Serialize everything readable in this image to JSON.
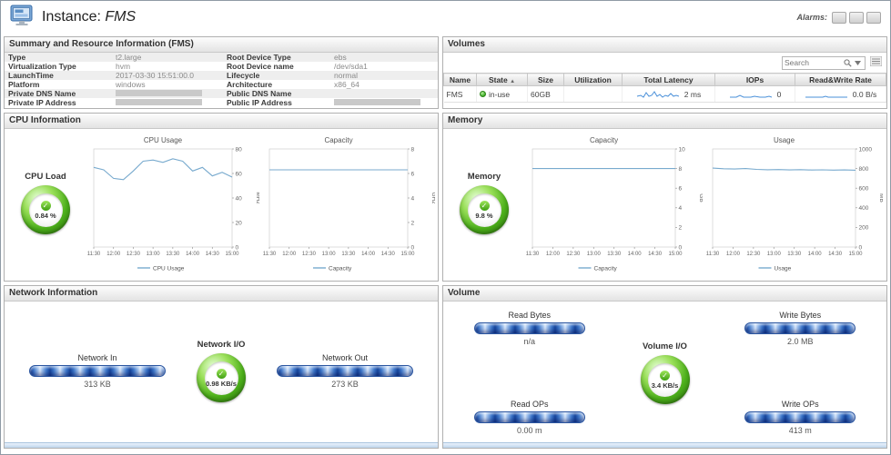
{
  "header": {
    "title_prefix": "Instance:",
    "instance_name": "FMS",
    "alarms_label": "Alarms:"
  },
  "icons": {
    "check": "✓",
    "sort_asc": "▲"
  },
  "summary": {
    "title": "Summary and Resource Information (FMS)",
    "rows": [
      {
        "k1": "Type",
        "v1": "t2.large",
        "k2": "Root Device Type",
        "v2": "ebs"
      },
      {
        "k1": "Virtualization Type",
        "v1": "hvm",
        "k2": "Root Device name",
        "v2": "/dev/sda1"
      },
      {
        "k1": "LaunchTime",
        "v1": "2017-03-30 15:51:00.0",
        "k2": "Lifecycle",
        "v2": "normal"
      },
      {
        "k1": "Platform",
        "v1": "windows",
        "k2": "Architecture",
        "v2": "x86_64"
      },
      {
        "k1": "Private DNS Name",
        "v1": "",
        "k2": "Public DNS Name",
        "v2": ""
      },
      {
        "k1": "Private IP Address",
        "v1": "",
        "k2": "Public IP Address",
        "v2": ""
      }
    ]
  },
  "volumes": {
    "title": "Volumes",
    "search_placeholder": "Search",
    "columns": [
      "Name",
      "State",
      "Size",
      "Utilization",
      "Total Latency",
      "IOPs",
      "Read&Write Rate"
    ],
    "row": {
      "name": "FMS",
      "state": "in-use",
      "size": "60GB",
      "utilization": "",
      "total_latency": "2 ms",
      "iops": "0",
      "read_write_rate": "0.0 B/s"
    }
  },
  "cpu": {
    "title": "CPU Information",
    "gauge_label": "CPU Load",
    "gauge_value": "0.84 %"
  },
  "memory": {
    "title": "Memory",
    "gauge_label": "Memory",
    "gauge_value": "9.8 %"
  },
  "network": {
    "title": "Network Information",
    "in_label": "Network In",
    "in_value": "313 KB",
    "gauge_label": "Network I/O",
    "gauge_value": "0.98 KB/s",
    "out_label": "Network Out",
    "out_value": "273 KB"
  },
  "volume_panel": {
    "title": "Volume",
    "read_bytes_label": "Read Bytes",
    "read_bytes_value": "n/a",
    "write_bytes_label": "Write Bytes",
    "write_bytes_value": "2.0 MB",
    "gauge_label": "Volume I/O",
    "gauge_value": "3.4 KB/s",
    "read_ops_label": "Read OPs",
    "read_ops_value": "0.00 m",
    "write_ops_label": "Write OPs",
    "write_ops_value": "413 m"
  },
  "chart_data": [
    {
      "id": "cpu_usage",
      "type": "line",
      "title": "CPU Usage",
      "ylabel": "MHz",
      "ylim": [
        0,
        80
      ],
      "yticks": [
        0,
        20,
        40,
        60,
        80
      ],
      "x": [
        "11:30",
        "12:00",
        "12:30",
        "13:00",
        "13:30",
        "14:00",
        "14:30",
        "15:00"
      ],
      "values": [
        65,
        63,
        56,
        55,
        62,
        70,
        71,
        69,
        72,
        70,
        62,
        65,
        58,
        61,
        57
      ],
      "legend": "CPU Usage",
      "line_color": "#78aace",
      "grid": false,
      "legend_position": "bottom"
    },
    {
      "id": "cpu_capacity",
      "type": "line",
      "title": "Capacity",
      "ylabel": "GHz",
      "ylim": [
        0,
        8
      ],
      "yticks": [
        0,
        2,
        4,
        6,
        8
      ],
      "x": [
        "11:30",
        "12:00",
        "12:30",
        "13:00",
        "13:30",
        "14:00",
        "14:30",
        "15:00"
      ],
      "values": [
        6.3,
        6.3,
        6.3,
        6.3,
        6.3,
        6.3,
        6.3,
        6.3
      ],
      "legend": "Capacity",
      "line_color": "#78aace",
      "grid": false,
      "legend_position": "bottom"
    },
    {
      "id": "mem_capacity",
      "type": "line",
      "title": "Capacity",
      "ylabel": "GB",
      "ylim": [
        0,
        10
      ],
      "yticks": [
        0,
        2,
        4,
        6,
        8,
        10
      ],
      "x": [
        "11:30",
        "12:00",
        "12:30",
        "13:00",
        "13:30",
        "14:00",
        "14:30",
        "15:00"
      ],
      "values": [
        8,
        8,
        8,
        8,
        8,
        8,
        8,
        8
      ],
      "legend": "Capacity",
      "line_color": "#78aace",
      "grid": false,
      "legend_position": "bottom"
    },
    {
      "id": "mem_usage",
      "type": "line",
      "title": "Usage",
      "ylabel": "MB",
      "ylim": [
        0,
        1000
      ],
      "yticks": [
        0,
        200,
        400,
        600,
        800,
        1000
      ],
      "x": [
        "11:30",
        "12:00",
        "12:30",
        "13:00",
        "13:30",
        "14:00",
        "14:30",
        "15:00"
      ],
      "values": [
        805,
        798,
        795,
        800,
        792,
        788,
        790,
        786,
        789,
        785,
        787,
        784,
        786,
        783
      ],
      "legend": "Usage",
      "line_color": "#78aace",
      "grid": false,
      "legend_position": "bottom"
    }
  ]
}
